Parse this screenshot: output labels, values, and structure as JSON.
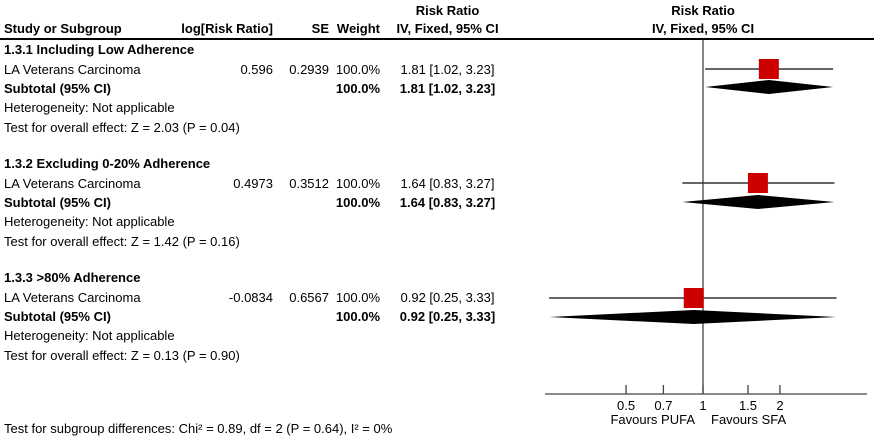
{
  "header": {
    "col_study": "Study or Subgroup",
    "col_log_rr": "log[Risk Ratio]",
    "col_se": "SE",
    "col_weight": "Weight",
    "col_effect_line1": "Risk Ratio",
    "col_effect_line2": "IV, Fixed, 95% CI",
    "plot_line1": "Risk Ratio",
    "plot_line2": "IV, Fixed, 95% CI"
  },
  "table": {
    "sections": [
      {
        "title": "1.3.1 Including Low Adherence",
        "study": {
          "name": "LA Veterans Carcinoma",
          "log_rr": "0.596",
          "se": "0.2939",
          "weight": "100.0%",
          "effect": "1.81 [1.02, 3.23]"
        },
        "subtotal": {
          "label": "Subtotal (95% CI)",
          "weight": "100.0%",
          "effect": "1.81 [1.02, 3.23]"
        },
        "heterogeneity": "Heterogeneity: Not applicable",
        "overall_effect": "Test for overall effect: Z = 2.03 (P = 0.04)"
      },
      {
        "title": "1.3.2 Excluding 0-20% Adherence",
        "study": {
          "name": "LA Veterans Carcinoma",
          "log_rr": "0.4973",
          "se": "0.3512",
          "weight": "100.0%",
          "effect": "1.64 [0.83, 3.27]"
        },
        "subtotal": {
          "label": "Subtotal (95% CI)",
          "weight": "100.0%",
          "effect": "1.64 [0.83, 3.27]"
        },
        "heterogeneity": "Heterogeneity: Not applicable",
        "overall_effect": "Test for overall effect: Z = 1.42 (P = 0.16)"
      },
      {
        "title": "1.3.3 >80% Adherence",
        "study": {
          "name": "LA Veterans Carcinoma",
          "log_rr": "-0.0834",
          "se": "0.6567",
          "weight": "100.0%",
          "effect": "0.92 [0.25, 3.33]"
        },
        "subtotal": {
          "label": "Subtotal (95% CI)",
          "weight": "100.0%",
          "effect": "0.92 [0.25, 3.33]"
        },
        "heterogeneity": "Heterogeneity: Not applicable",
        "overall_effect": "Test for overall effect: Z = 0.13 (P = 0.90)"
      }
    ]
  },
  "footer": "Test for subgroup differences: Chi² = 0.89, df = 2 (P = 0.64), I² = 0%",
  "chart_data": {
    "type": "forest",
    "scale": "log",
    "effect_measure": "Risk Ratio",
    "method": "IV, Fixed, 95% CI",
    "null_value": 1,
    "x_ticks": [
      0.5,
      0.7,
      1,
      1.5,
      2
    ],
    "x_tick_labels": [
      "0.5",
      "0.7",
      "1",
      "1.5",
      "2"
    ],
    "x_range_approx": [
      0.24,
      4.4
    ],
    "favours_left": "Favours PUFA",
    "favours_right": "Favours SFA",
    "marker_color": "#cc0000",
    "diamond_color": "#000000",
    "line_color": "#444444",
    "sections": [
      {
        "name": "1.3.1 Including Low Adherence",
        "study": {
          "name": "LA Veterans Carcinoma",
          "log_rr": 0.596,
          "se": 0.2939,
          "weight_pct": 100.0,
          "rr": 1.81,
          "low": 1.02,
          "high": 3.23
        },
        "subtotal": {
          "rr": 1.81,
          "low": 1.02,
          "high": 3.23,
          "weight_pct": 100.0
        },
        "z": 2.03,
        "p": 0.04
      },
      {
        "name": "1.3.2 Excluding 0-20% Adherence",
        "study": {
          "name": "LA Veterans Carcinoma",
          "log_rr": 0.4973,
          "se": 0.3512,
          "weight_pct": 100.0,
          "rr": 1.64,
          "low": 0.83,
          "high": 3.27
        },
        "subtotal": {
          "rr": 1.64,
          "low": 0.83,
          "high": 3.27,
          "weight_pct": 100.0
        },
        "z": 1.42,
        "p": 0.16
      },
      {
        "name": "1.3.3 >80% Adherence",
        "study": {
          "name": "LA Veterans Carcinoma",
          "log_rr": -0.0834,
          "se": 0.6567,
          "weight_pct": 100.0,
          "rr": 0.92,
          "low": 0.25,
          "high": 3.33
        },
        "subtotal": {
          "rr": 0.92,
          "low": 0.25,
          "high": 3.33,
          "weight_pct": 100.0
        },
        "z": 0.13,
        "p": 0.9
      }
    ],
    "subgroup_difference": {
      "chi2": 0.89,
      "df": 2,
      "p": 0.64,
      "i2_pct": 0
    }
  }
}
